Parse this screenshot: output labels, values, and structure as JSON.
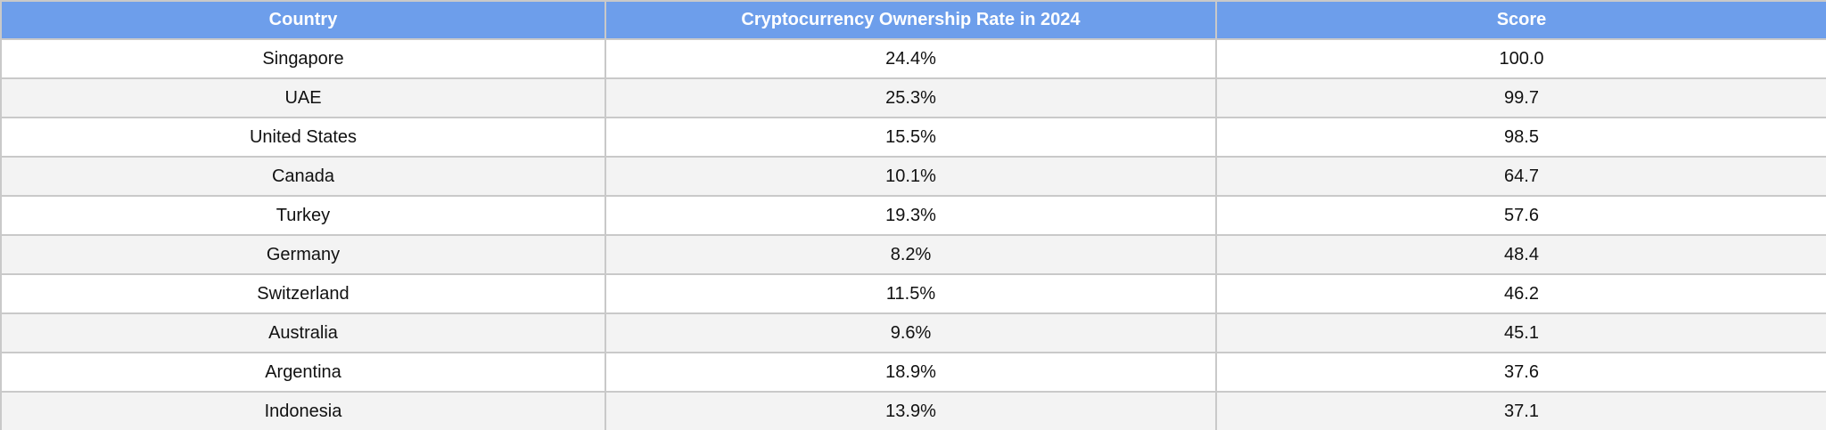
{
  "table": {
    "columns": [
      {
        "id": "country",
        "label": "Country"
      },
      {
        "id": "rate",
        "label": "Cryptocurrency Ownership Rate in 2024"
      },
      {
        "id": "score",
        "label": "Score"
      }
    ],
    "rows": [
      {
        "country": "Singapore",
        "rate": "24.4%",
        "score": "100.0"
      },
      {
        "country": "UAE",
        "rate": "25.3%",
        "score": "99.7"
      },
      {
        "country": "United States",
        "rate": "15.5%",
        "score": "98.5"
      },
      {
        "country": "Canada",
        "rate": "10.1%",
        "score": "64.7"
      },
      {
        "country": "Turkey",
        "rate": "19.3%",
        "score": "57.6"
      },
      {
        "country": "Germany",
        "rate": "8.2%",
        "score": "48.4"
      },
      {
        "country": "Switzerland",
        "rate": "11.5%",
        "score": "46.2"
      },
      {
        "country": "Australia",
        "rate": "9.6%",
        "score": "45.1"
      },
      {
        "country": "Argentina",
        "rate": "18.9%",
        "score": "37.6"
      },
      {
        "country": "Indonesia",
        "rate": "13.9%",
        "score": "37.1"
      }
    ]
  },
  "colors": {
    "header_bg": "#6d9eeb",
    "header_text": "#ffffff",
    "row_bg": "#ffffff",
    "row_alt_bg": "#f3f3f3",
    "border": "#c9c9c9",
    "text": "#111111"
  },
  "chart_data": {
    "type": "table",
    "columns": [
      "Country",
      "Cryptocurrency Ownership Rate in 2024",
      "Score"
    ],
    "rows": [
      [
        "Singapore",
        "24.4%",
        100.0
      ],
      [
        "UAE",
        "25.3%",
        99.7
      ],
      [
        "United States",
        "15.5%",
        98.5
      ],
      [
        "Canada",
        "10.1%",
        64.7
      ],
      [
        "Turkey",
        "19.3%",
        57.6
      ],
      [
        "Germany",
        "8.2%",
        48.4
      ],
      [
        "Switzerland",
        "11.5%",
        46.2
      ],
      [
        "Australia",
        "9.6%",
        45.1
      ],
      [
        "Argentina",
        "18.9%",
        37.6
      ],
      [
        "Indonesia",
        "13.9%",
        37.1
      ]
    ],
    "layout_hints": {
      "header_centered": true,
      "cells_centered": true,
      "striped_rows": true
    }
  }
}
